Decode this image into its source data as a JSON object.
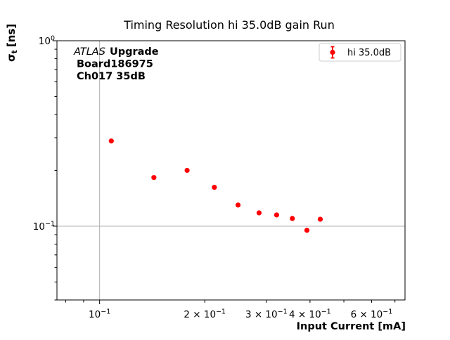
{
  "figure": {
    "title": "Timing Resolution hi 35.0dB gain Run",
    "xlabel": "Input Current [mA]",
    "ylabel": {
      "sigma": "σ",
      "sub": "t",
      "units": "[ns]"
    },
    "annotation": {
      "experiment": "ATLAS",
      "label": "Upgrade",
      "board": "Board186975",
      "channel": "Ch017 35dB"
    },
    "legend": {
      "label": "hi 35.0dB"
    }
  },
  "chart_data": {
    "type": "scatter",
    "title": "Timing Resolution hi 35.0dB gain Run",
    "xlabel": "Input Current [mA]",
    "ylabel": "σt [ns]",
    "xscale": "log",
    "yscale": "log",
    "xlim": [
      0.0755,
      0.748
    ],
    "ylim": [
      0.04,
      1.0
    ],
    "grid": true,
    "legend_position": "upper right",
    "series": [
      {
        "name": "hi 35.0dB",
        "color": "#ff0000",
        "marker": "circle-with-errorbar",
        "x": [
          0.108,
          0.143,
          0.178,
          0.213,
          0.249,
          0.286,
          0.321,
          0.356,
          0.392,
          0.428
        ],
        "y": [
          0.288,
          0.183,
          0.2,
          0.162,
          0.13,
          0.118,
          0.115,
          0.11,
          0.095,
          0.109
        ]
      }
    ],
    "xticks_labeled": [
      {
        "v": 0.1,
        "coef": "",
        "exp": "−1"
      },
      {
        "v": 0.2,
        "coef": "2 × ",
        "exp": "−1"
      },
      {
        "v": 0.3,
        "coef": "3 × ",
        "exp": "−1"
      },
      {
        "v": 0.4,
        "coef": "4 × ",
        "exp": "−1"
      },
      {
        "v": 0.6,
        "coef": "6 × ",
        "exp": "−1"
      }
    ],
    "xticks_minor": [
      0.08,
      0.09,
      0.5,
      0.7
    ],
    "yticks_labeled": [
      {
        "v": 1.0,
        "exp": "0"
      },
      {
        "v": 0.1,
        "exp": "−1"
      }
    ],
    "yticks_minor": [
      0.9,
      0.8,
      0.7,
      0.6,
      0.5,
      0.4,
      0.3,
      0.2,
      0.09,
      0.08,
      0.07,
      0.06,
      0.05,
      0.04
    ],
    "grid_x": [
      0.1
    ],
    "grid_y": [
      0.1
    ],
    "colors": {
      "marker": "#ff0000",
      "grid": "#b0b0b0",
      "spine": "#000000",
      "legend_edge": "#cccccc",
      "background": "#ffffff"
    }
  }
}
